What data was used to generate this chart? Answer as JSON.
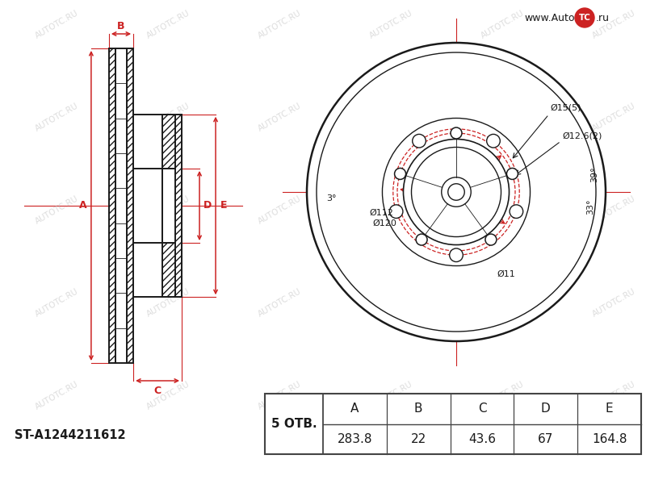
{
  "part_number": "ST-A1244211612",
  "holes_label": "5 ОТВ.",
  "table_headers": [
    "A",
    "B",
    "C",
    "D",
    "E"
  ],
  "table_values": [
    "283.8",
    "22",
    "43.6",
    "67",
    "164.8"
  ],
  "dim_A": 283.8,
  "dim_B": 22,
  "dim_C": 43.6,
  "dim_D": 67,
  "dim_E": 164.8,
  "n_holes": 5,
  "ann_outer": "Ø15(5)",
  "ann_bolt": "Ø12.6(2)",
  "ann_bc1": "Ø112",
  "ann_bc2": "Ø120",
  "ann_center": "Ø11",
  "ann_3deg": "3°",
  "ann_39deg": "39°",
  "ann_33deg": "33°",
  "black": "#1a1a1a",
  "red": "#cc2222",
  "white": "#ffffff",
  "bg": "#ffffff",
  "gray_table": "#444444",
  "watermark_text": "AUTOTC.RU",
  "logo_text1": "www.Auto",
  "logo_tc": "TC",
  "logo_text2": ".ru"
}
